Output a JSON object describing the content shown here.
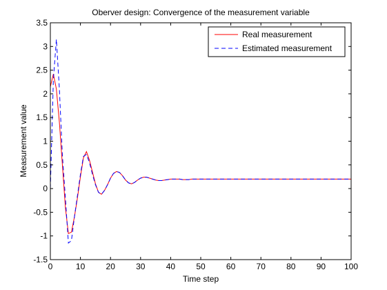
{
  "chart_data": {
    "type": "line",
    "title": "Oberver design: Convergence of the measurement variable",
    "xlabel": "Time step",
    "ylabel": "Measurement value",
    "xlim": [
      0,
      100
    ],
    "ylim": [
      -1.5,
      3.5
    ],
    "xticks": [
      0,
      10,
      20,
      30,
      40,
      50,
      60,
      70,
      80,
      90,
      100
    ],
    "yticks": [
      -1.5,
      -1,
      -0.5,
      0,
      0.5,
      1,
      1.5,
      2,
      2.5,
      3,
      3.5
    ],
    "grid": false,
    "legend_position": "top-right",
    "series": [
      {
        "name": "Real measurement",
        "color": "#ff0000",
        "style": "solid",
        "x": [
          0,
          1,
          2,
          3,
          4,
          5,
          6,
          7,
          8,
          9,
          10,
          11,
          12,
          13,
          14,
          15,
          16,
          17,
          18,
          19,
          20,
          21,
          22,
          23,
          24,
          25,
          26,
          27,
          28,
          29,
          30,
          31,
          32,
          33,
          34,
          35,
          36,
          37,
          38,
          39,
          40,
          41,
          42,
          43,
          44,
          45,
          46,
          47,
          48,
          49,
          50,
          51,
          52,
          53,
          54,
          55,
          56,
          57,
          58,
          59,
          60,
          61,
          62,
          63,
          64,
          65,
          66,
          67,
          68,
          69,
          70,
          71,
          72,
          73,
          74,
          75,
          76,
          77,
          78,
          79,
          80,
          81,
          82,
          83,
          84,
          85,
          86,
          87,
          88,
          89,
          90,
          91,
          92,
          93,
          94,
          95,
          96,
          97,
          98,
          99,
          100
        ],
        "values": [
          2.15,
          2.42,
          2.1,
          1.4,
          0.5,
          -0.4,
          -0.95,
          -0.92,
          -0.6,
          -0.2,
          0.25,
          0.65,
          0.78,
          0.6,
          0.35,
          0.1,
          -0.08,
          -0.12,
          -0.04,
          0.08,
          0.22,
          0.32,
          0.36,
          0.34,
          0.27,
          0.18,
          0.12,
          0.1,
          0.13,
          0.18,
          0.22,
          0.24,
          0.24,
          0.22,
          0.2,
          0.18,
          0.17,
          0.17,
          0.18,
          0.19,
          0.2,
          0.2,
          0.2,
          0.2,
          0.19,
          0.19,
          0.19,
          0.2,
          0.2,
          0.2,
          0.2,
          0.2,
          0.2,
          0.2,
          0.2,
          0.2,
          0.2,
          0.2,
          0.2,
          0.2,
          0.2,
          0.2,
          0.2,
          0.2,
          0.2,
          0.2,
          0.2,
          0.2,
          0.2,
          0.2,
          0.2,
          0.2,
          0.2,
          0.2,
          0.2,
          0.2,
          0.2,
          0.2,
          0.2,
          0.2,
          0.2,
          0.2,
          0.2,
          0.2,
          0.2,
          0.2,
          0.2,
          0.2,
          0.2,
          0.2,
          0.2,
          0.2,
          0.2,
          0.2,
          0.2,
          0.2,
          0.2,
          0.2,
          0.2,
          0.2,
          0.2
        ]
      },
      {
        "name": "Estimated measurement",
        "color": "#0000ff",
        "style": "dashed",
        "x": [
          0,
          1,
          2,
          3,
          4,
          5,
          6,
          7,
          8,
          9,
          10,
          11,
          12,
          13,
          14,
          15,
          16,
          17,
          18,
          19,
          20,
          21,
          22,
          23,
          24,
          25,
          26,
          27,
          28,
          29,
          30,
          31,
          32,
          33,
          34,
          35,
          36,
          37,
          38,
          39,
          40,
          41,
          42,
          43,
          44,
          45,
          46,
          47,
          48,
          49,
          50,
          51,
          52,
          53,
          54,
          55,
          56,
          57,
          58,
          59,
          60,
          61,
          62,
          63,
          64,
          65,
          66,
          67,
          68,
          69,
          70,
          71,
          72,
          73,
          74,
          75,
          76,
          77,
          78,
          79,
          80,
          81,
          82,
          83,
          84,
          85,
          86,
          87,
          88,
          89,
          90,
          91,
          92,
          93,
          94,
          95,
          96,
          97,
          98,
          99,
          100
        ],
        "values": [
          0.0,
          2.3,
          3.15,
          2.1,
          0.7,
          -0.2,
          -1.15,
          -1.1,
          -0.6,
          -0.15,
          0.3,
          0.68,
          0.72,
          0.55,
          0.3,
          0.08,
          -0.08,
          -0.12,
          -0.04,
          0.08,
          0.22,
          0.32,
          0.36,
          0.34,
          0.27,
          0.18,
          0.12,
          0.1,
          0.13,
          0.18,
          0.22,
          0.24,
          0.24,
          0.22,
          0.2,
          0.18,
          0.17,
          0.17,
          0.18,
          0.19,
          0.2,
          0.2,
          0.2,
          0.2,
          0.19,
          0.19,
          0.19,
          0.2,
          0.2,
          0.2,
          0.2,
          0.2,
          0.2,
          0.2,
          0.2,
          0.2,
          0.2,
          0.2,
          0.2,
          0.2,
          0.2,
          0.2,
          0.2,
          0.2,
          0.2,
          0.2,
          0.2,
          0.2,
          0.2,
          0.2,
          0.2,
          0.2,
          0.2,
          0.2,
          0.2,
          0.2,
          0.2,
          0.2,
          0.2,
          0.2,
          0.2,
          0.2,
          0.2,
          0.2,
          0.2,
          0.2,
          0.2,
          0.2,
          0.2,
          0.2,
          0.2,
          0.2,
          0.2,
          0.2,
          0.2,
          0.2,
          0.2,
          0.2,
          0.2,
          0.2,
          0.2
        ]
      }
    ]
  }
}
